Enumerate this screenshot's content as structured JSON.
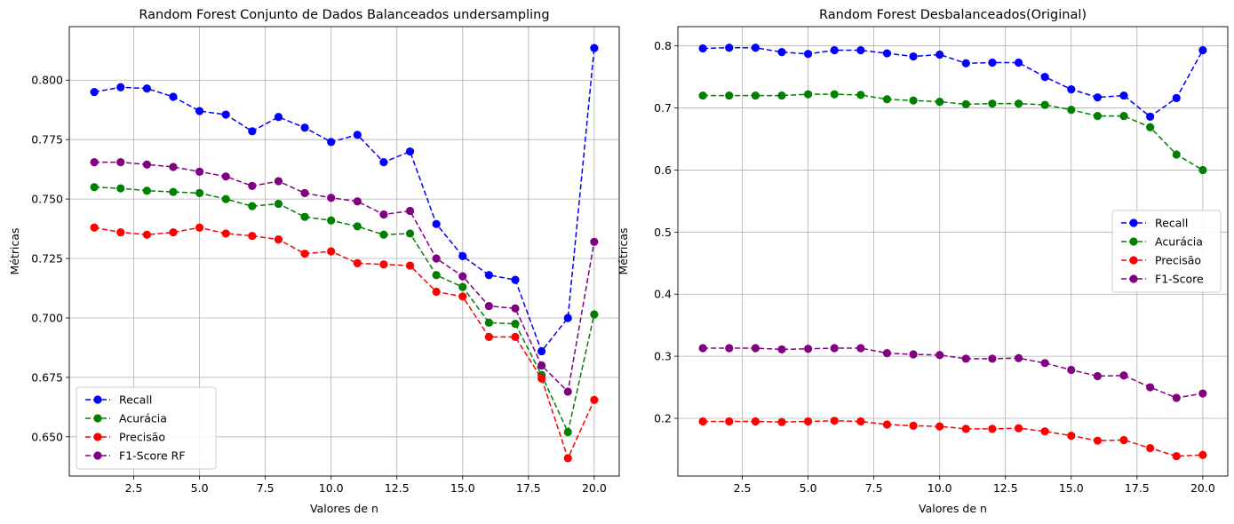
{
  "chart_data": [
    {
      "type": "line",
      "title": "Random Forest Conjunto de Dados Balanceados undersampling",
      "xlabel": "Valores de n",
      "ylabel": "Métricas",
      "xlim": [
        0.05,
        20.95
      ],
      "ylim": [
        0.6335,
        0.8225
      ],
      "xticks": [
        2.5,
        5.0,
        7.5,
        10.0,
        12.5,
        15.0,
        17.5,
        20.0
      ],
      "xtick_labels": [
        "2.5",
        "5.0",
        "7.5",
        "10.0",
        "12.5",
        "15.0",
        "17.5",
        "20.0"
      ],
      "yticks": [
        0.65,
        0.675,
        0.7,
        0.725,
        0.75,
        0.775,
        0.8
      ],
      "ytick_labels": [
        "0.650",
        "0.675",
        "0.700",
        "0.725",
        "0.750",
        "0.775",
        "0.800"
      ],
      "grid": true,
      "legend_position": "lower-left",
      "x": [
        1,
        2,
        3,
        4,
        5,
        6,
        7,
        8,
        9,
        10,
        11,
        12,
        13,
        14,
        15,
        16,
        17,
        18,
        19,
        20
      ],
      "series": [
        {
          "name": "Recall",
          "color": "#0000ff",
          "values": [
            0.795,
            0.797,
            0.7965,
            0.793,
            0.787,
            0.7855,
            0.7785,
            0.7845,
            0.78,
            0.774,
            0.777,
            0.7655,
            0.77,
            0.7395,
            0.726,
            0.718,
            0.716,
            0.686,
            0.7,
            0.8135
          ]
        },
        {
          "name": "Acurácia",
          "color": "#008000",
          "values": [
            0.755,
            0.7545,
            0.7535,
            0.753,
            0.7525,
            0.75,
            0.747,
            0.748,
            0.7425,
            0.741,
            0.7385,
            0.735,
            0.7355,
            0.718,
            0.713,
            0.698,
            0.6975,
            0.676,
            0.652,
            0.7015
          ]
        },
        {
          "name": "Precisão",
          "color": "#ff0000",
          "values": [
            0.738,
            0.736,
            0.735,
            0.736,
            0.738,
            0.7355,
            0.7345,
            0.733,
            0.727,
            0.728,
            0.723,
            0.7225,
            0.722,
            0.711,
            0.709,
            0.692,
            0.692,
            0.6745,
            0.641,
            0.6655
          ]
        },
        {
          "name": "F1-Score RF",
          "color": "#800080",
          "values": [
            0.7655,
            0.7655,
            0.7645,
            0.7635,
            0.7615,
            0.7595,
            0.7555,
            0.7575,
            0.7525,
            0.7505,
            0.749,
            0.7435,
            0.745,
            0.725,
            0.7175,
            0.705,
            0.704,
            0.68,
            0.669,
            0.732
          ]
        }
      ]
    },
    {
      "type": "line",
      "title": "Random Forest Desbalanceados(Original)",
      "xlabel": "Valores de n",
      "ylabel": "Métricas",
      "xlim": [
        0.05,
        20.95
      ],
      "ylim": [
        0.107,
        0.831
      ],
      "xticks": [
        2.5,
        5.0,
        7.5,
        10.0,
        12.5,
        15.0,
        17.5,
        20.0
      ],
      "xtick_labels": [
        "2.5",
        "5.0",
        "7.5",
        "10.0",
        "12.5",
        "15.0",
        "17.5",
        "20.0"
      ],
      "yticks": [
        0.2,
        0.3,
        0.4,
        0.5,
        0.6,
        0.7,
        0.8
      ],
      "ytick_labels": [
        "0.2",
        "0.3",
        "0.4",
        "0.5",
        "0.6",
        "0.7",
        "0.8"
      ],
      "grid": true,
      "legend_position": "center-right",
      "x": [
        1,
        2,
        3,
        4,
        5,
        6,
        7,
        8,
        9,
        10,
        11,
        12,
        13,
        14,
        15,
        16,
        17,
        18,
        19,
        20
      ],
      "series": [
        {
          "name": "Recall",
          "color": "#0000ff",
          "values": [
            0.796,
            0.797,
            0.797,
            0.79,
            0.787,
            0.793,
            0.793,
            0.788,
            0.783,
            0.786,
            0.772,
            0.773,
            0.773,
            0.75,
            0.73,
            0.717,
            0.72,
            0.686,
            0.716,
            0.793
          ]
        },
        {
          "name": "Acurácia",
          "color": "#008000",
          "values": [
            0.72,
            0.72,
            0.72,
            0.72,
            0.722,
            0.722,
            0.721,
            0.714,
            0.712,
            0.71,
            0.706,
            0.707,
            0.707,
            0.705,
            0.697,
            0.687,
            0.687,
            0.669,
            0.625,
            0.6
          ]
        },
        {
          "name": "Precisão",
          "color": "#ff0000",
          "values": [
            0.195,
            0.195,
            0.195,
            0.194,
            0.195,
            0.196,
            0.195,
            0.19,
            0.188,
            0.187,
            0.183,
            0.183,
            0.184,
            0.179,
            0.172,
            0.164,
            0.165,
            0.152,
            0.139,
            0.141
          ]
        },
        {
          "name": "F1-Score",
          "color": "#800080",
          "values": [
            0.313,
            0.313,
            0.313,
            0.311,
            0.312,
            0.313,
            0.313,
            0.305,
            0.303,
            0.302,
            0.296,
            0.296,
            0.297,
            0.289,
            0.278,
            0.268,
            0.269,
            0.25,
            0.233,
            0.24
          ]
        }
      ]
    }
  ]
}
